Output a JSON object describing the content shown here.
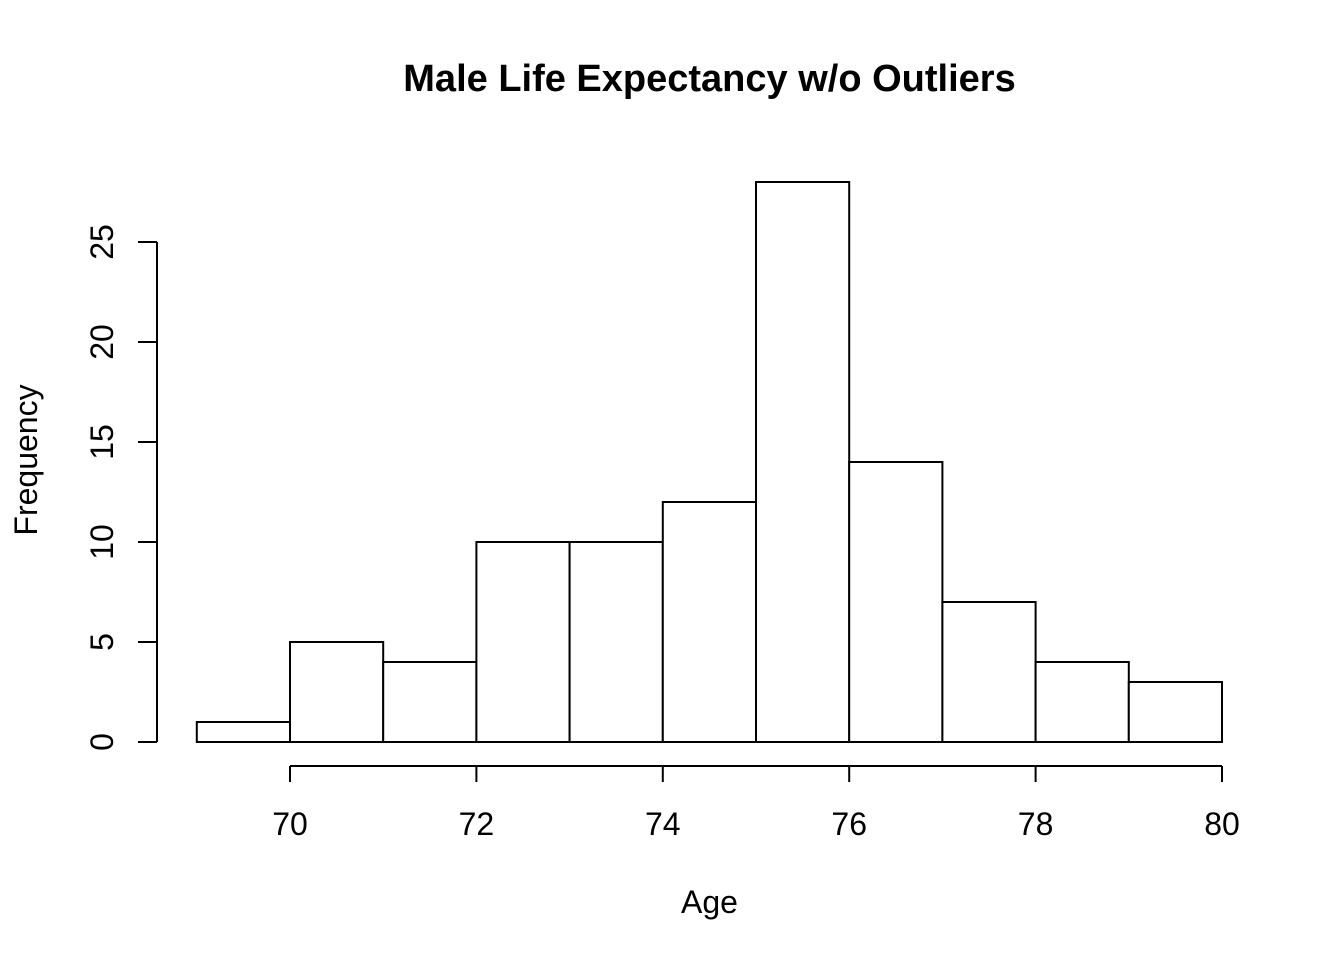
{
  "chart_data": {
    "type": "bar",
    "chart_kind": "histogram",
    "title": "Male Life Expectancy w/o Outliers",
    "xlabel": "Age",
    "ylabel": "Frequency",
    "bin_width": 1,
    "bin_edges": [
      69,
      70,
      71,
      72,
      73,
      74,
      75,
      76,
      77,
      78,
      79,
      80
    ],
    "categories": [
      "69-70",
      "70-71",
      "71-72",
      "72-73",
      "73-74",
      "74-75",
      "75-76",
      "76-77",
      "77-78",
      "78-79",
      "79-80"
    ],
    "values": [
      1,
      5,
      4,
      10,
      10,
      12,
      28,
      14,
      7,
      4,
      3
    ],
    "x_ticks": [
      70,
      72,
      74,
      76,
      78,
      80
    ],
    "y_ticks": [
      0,
      5,
      10,
      15,
      20,
      25
    ],
    "xlim": [
      69,
      80
    ],
    "ylim": [
      0,
      28
    ],
    "grid": false,
    "legend": false,
    "bar_fill": "#ffffff",
    "bar_stroke": "#000000",
    "axis_color": "#000000",
    "text_color": "#000000",
    "background": "#ffffff"
  }
}
